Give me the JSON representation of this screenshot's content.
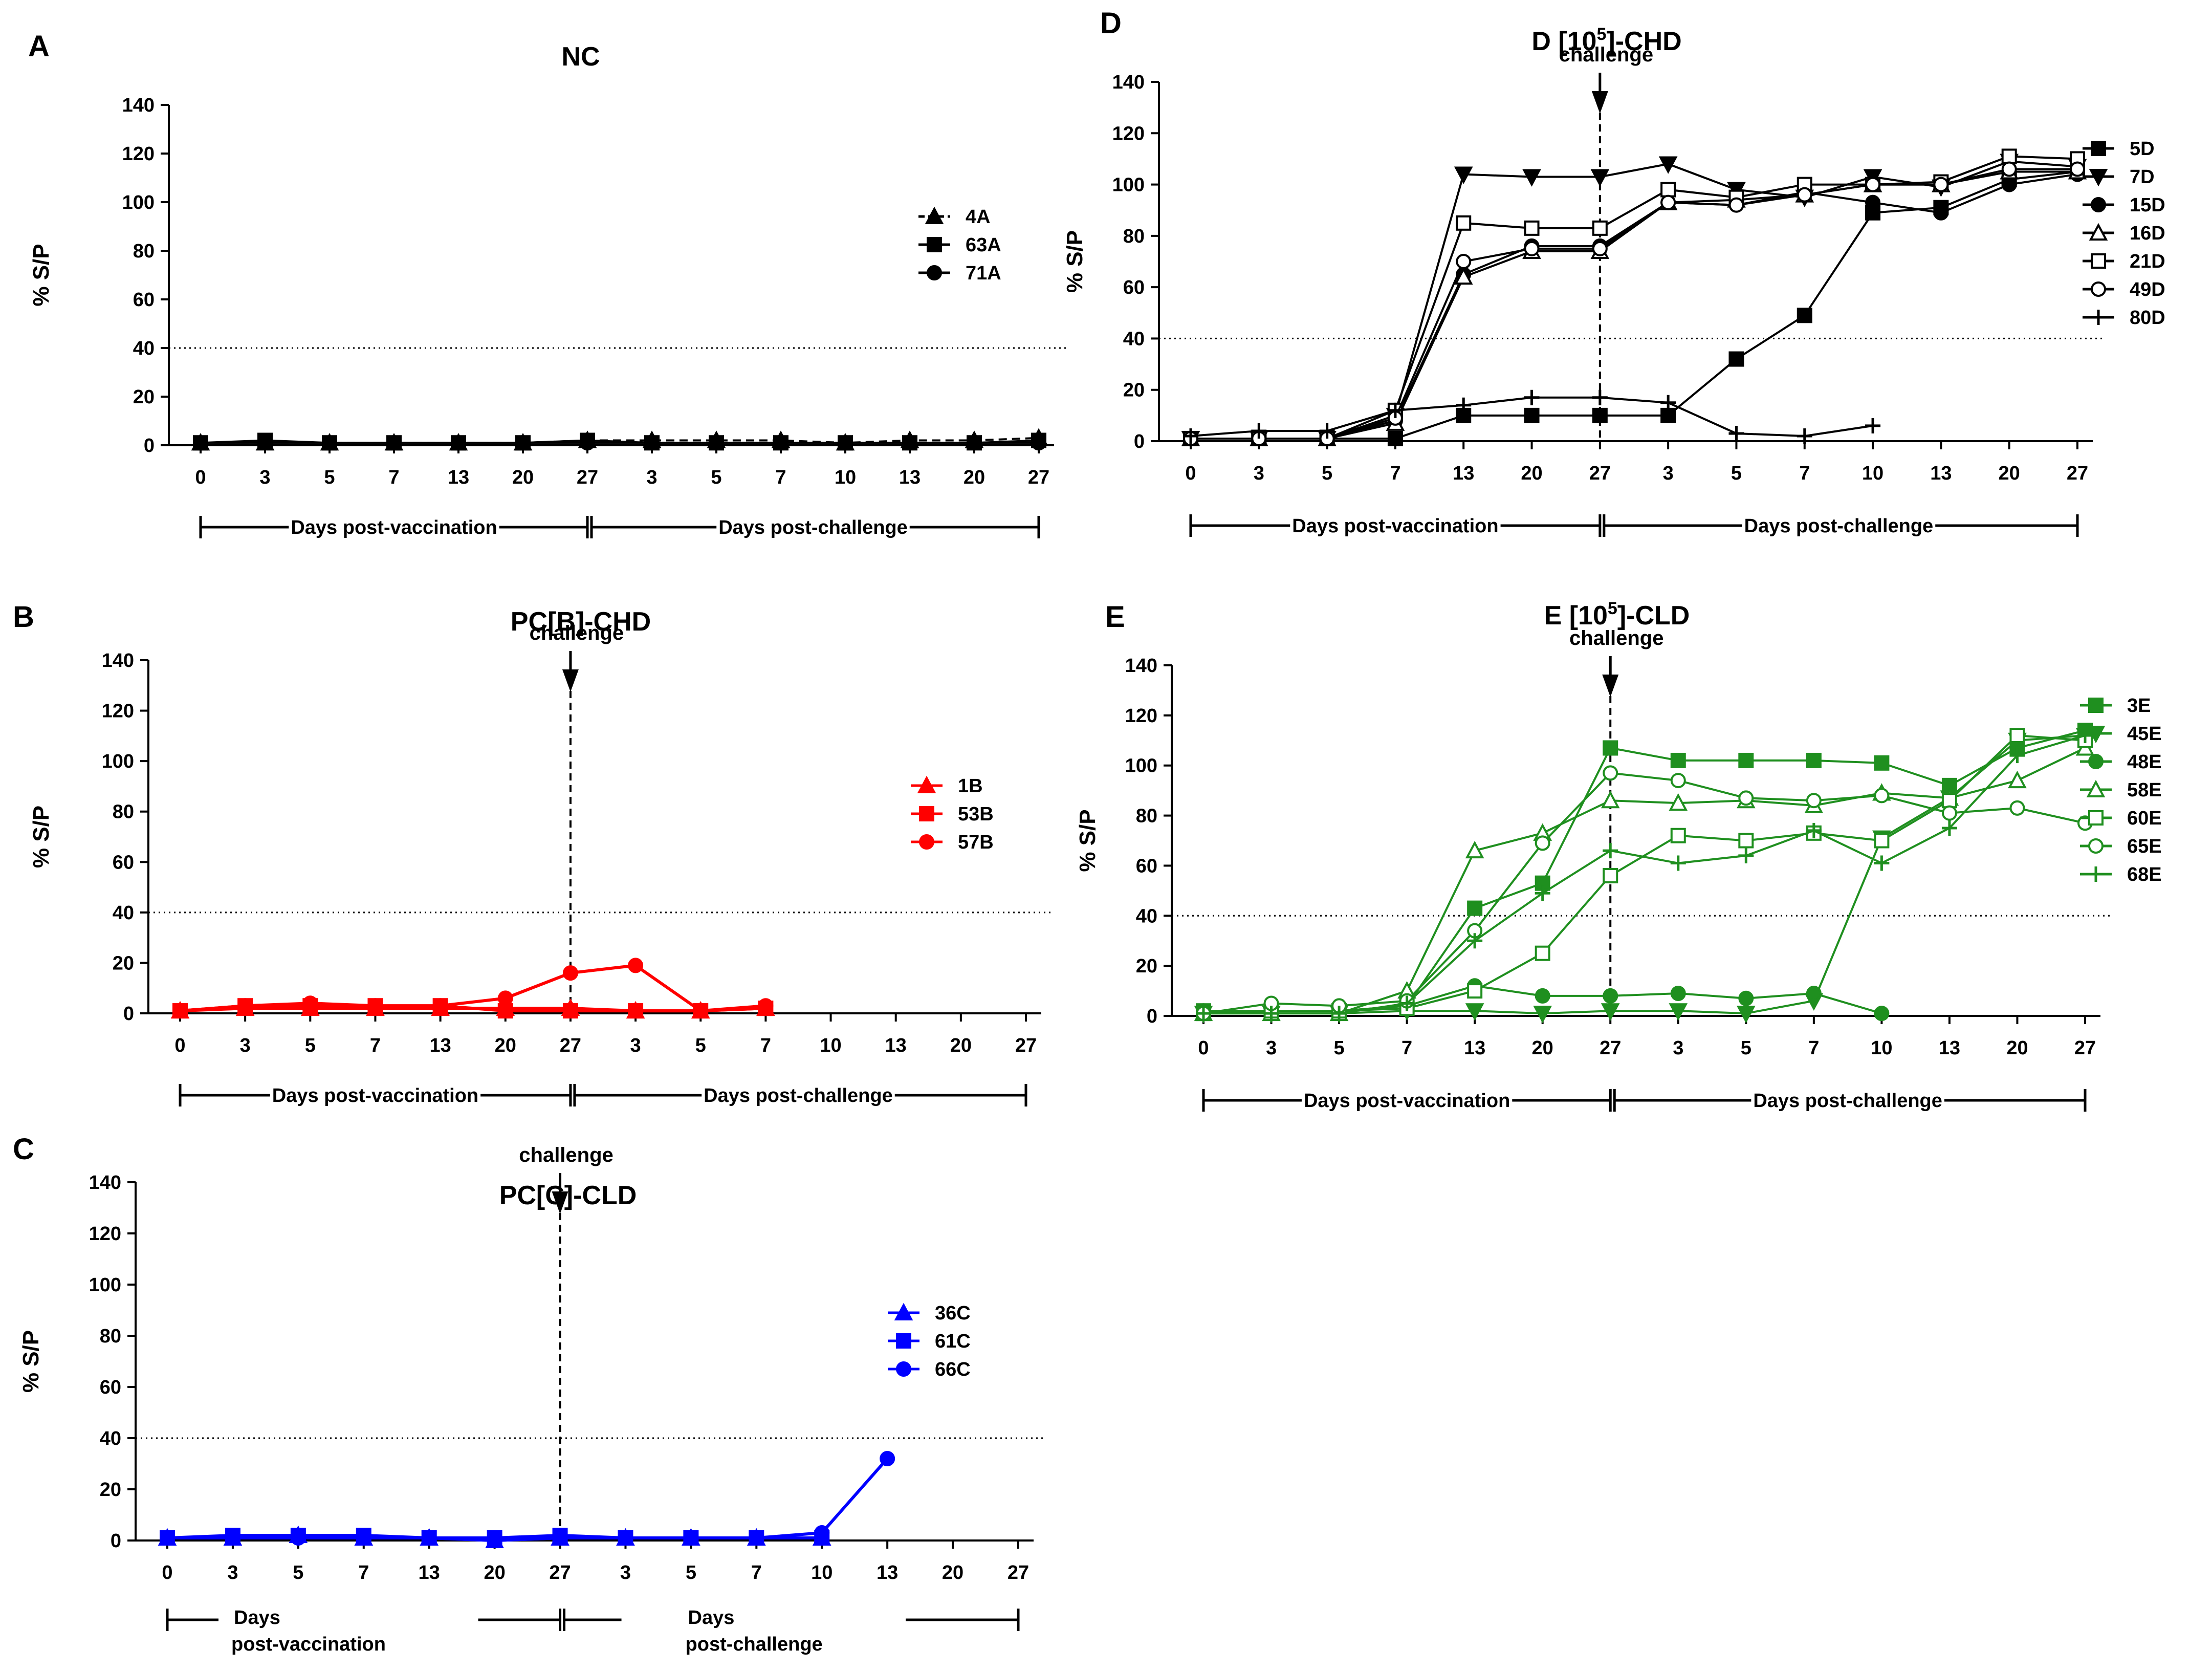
{
  "chart_data": [
    {
      "type": "line",
      "panel": "A",
      "title": "NC",
      "title_sup": "",
      "title_after": "",
      "ylabel": "% S/P",
      "ylim": [
        0,
        140
      ],
      "yticks": [
        0,
        20,
        40,
        60,
        80,
        100,
        120,
        140
      ],
      "cutoff": 40,
      "color": "#000000",
      "categories": [
        "0",
        "3",
        "5",
        "7",
        "13",
        "20",
        "27",
        "3",
        "5",
        "7",
        "10",
        "13",
        "20",
        "27"
      ],
      "challenge": null,
      "phases": [
        "Days post-vaccination",
        "Days post-challenge"
      ],
      "series": [
        {
          "name": "4A",
          "marker": "triangle",
          "dashed": true,
          "values": [
            1,
            1,
            1,
            1,
            1,
            1,
            2,
            2,
            2,
            2,
            1,
            2,
            2,
            3
          ]
        },
        {
          "name": "63A",
          "marker": "square",
          "dashed": false,
          "values": [
            1,
            2,
            1,
            1,
            1,
            1,
            2,
            1,
            1,
            1,
            1,
            1,
            1,
            2
          ]
        },
        {
          "name": "71A",
          "marker": "circle",
          "dashed": false,
          "values": [
            1,
            1,
            1,
            1,
            1,
            1,
            1,
            1,
            1,
            1,
            1,
            1,
            1,
            1
          ]
        }
      ]
    },
    {
      "type": "line",
      "panel": "B",
      "title": "PC[B]-CHD",
      "title_sup": "",
      "title_after": "",
      "ylabel": "% S/P",
      "ylim": [
        0,
        140
      ],
      "yticks": [
        0,
        20,
        40,
        60,
        80,
        100,
        120,
        140
      ],
      "cutoff": 40,
      "color": "#ff0000",
      "categories": [
        "0",
        "3",
        "5",
        "7",
        "13",
        "20",
        "27",
        "3",
        "5",
        "7",
        "10",
        "13",
        "20",
        "27"
      ],
      "challenge": {
        "index": 6,
        "label": "challenge"
      },
      "phases": [
        "Days post-vaccination",
        "Days post-challenge"
      ],
      "series": [
        {
          "name": "1B",
          "marker": "triangle",
          "dashed": false,
          "values": [
            1,
            2,
            2,
            2,
            2,
            2,
            2,
            1,
            1,
            2,
            null,
            null,
            null,
            null
          ]
        },
        {
          "name": "53B",
          "marker": "square",
          "dashed": false,
          "values": [
            1,
            3,
            3,
            3,
            3,
            1,
            1,
            1,
            1,
            2,
            null,
            null,
            null,
            null
          ]
        },
        {
          "name": "57B",
          "marker": "circle",
          "dashed": false,
          "values": [
            1,
            3,
            4,
            3,
            3,
            6,
            16,
            19,
            1,
            3,
            null,
            null,
            null,
            null
          ]
        }
      ]
    },
    {
      "type": "line",
      "panel": "C",
      "title": "PC[C]-CLD",
      "title_sup": "",
      "title_after": "",
      "ylabel": "% S/P",
      "ylim": [
        0,
        140
      ],
      "yticks": [
        0,
        20,
        40,
        60,
        80,
        100,
        120,
        140
      ],
      "cutoff": 40,
      "color": "#0000ff",
      "categories": [
        "0",
        "3",
        "5",
        "7",
        "13",
        "20",
        "27",
        "3",
        "5",
        "7",
        "10",
        "13",
        "20",
        "27"
      ],
      "challenge": {
        "index": 6,
        "label": "challenge"
      },
      "phases": [
        "Days post-vaccination",
        "Days post-challenge"
      ],
      "series": [
        {
          "name": "36C",
          "marker": "triangle",
          "dashed": false,
          "values": [
            1,
            1,
            2,
            1,
            1,
            0,
            1,
            1,
            1,
            1,
            1,
            null,
            null,
            null
          ]
        },
        {
          "name": "61C",
          "marker": "square",
          "dashed": false,
          "values": [
            1,
            2,
            2,
            2,
            1,
            1,
            2,
            1,
            1,
            1,
            1,
            null,
            null,
            null
          ]
        },
        {
          "name": "66C",
          "marker": "circle",
          "dashed": false,
          "values": [
            1,
            1,
            1,
            1,
            1,
            0,
            1,
            1,
            1,
            1,
            3,
            32,
            null,
            null
          ]
        }
      ]
    },
    {
      "type": "line",
      "panel": "D",
      "title": "D [10",
      "title_sup": "5",
      "title_after": "]-CHD",
      "ylabel": "% S/P",
      "ylim": [
        0,
        140
      ],
      "yticks": [
        0,
        20,
        40,
        60,
        80,
        100,
        120,
        140
      ],
      "cutoff": 40,
      "color": "#000000",
      "categories": [
        "0",
        "3",
        "5",
        "7",
        "13",
        "20",
        "27",
        "3",
        "5",
        "7",
        "10",
        "13",
        "20",
        "27"
      ],
      "challenge": {
        "index": 6,
        "label": "challenge"
      },
      "phases": [
        "Days post-vaccination",
        "Days post-challenge"
      ],
      "series": [
        {
          "name": "5D",
          "marker": "square",
          "dashed": false,
          "values": [
            1,
            1,
            1,
            1,
            10,
            10,
            10,
            10,
            32,
            49,
            89,
            91,
            102,
            105
          ]
        },
        {
          "name": "7D",
          "marker": "triangle-down",
          "dashed": false,
          "values": [
            1,
            1,
            1,
            10,
            104,
            103,
            103,
            108,
            98,
            95,
            103,
            99,
            109,
            107
          ]
        },
        {
          "name": "15D",
          "marker": "circle",
          "dashed": false,
          "values": [
            1,
            1,
            1,
            8,
            65,
            76,
            76,
            93,
            92,
            97,
            93,
            89,
            100,
            104
          ]
        },
        {
          "name": "16D",
          "marker": "triangle-open",
          "dashed": false,
          "values": [
            1,
            1,
            1,
            7,
            64,
            74,
            74,
            93,
            94,
            96,
            100,
            100,
            105,
            105
          ]
        },
        {
          "name": "21D",
          "marker": "square-open",
          "dashed": false,
          "values": [
            1,
            1,
            1,
            12,
            85,
            83,
            83,
            98,
            95,
            100,
            100,
            101,
            111,
            110
          ]
        },
        {
          "name": "49D",
          "marker": "circle-open",
          "dashed": false,
          "values": [
            1,
            1,
            1,
            9,
            70,
            75,
            75,
            93,
            92,
            96,
            100,
            100,
            106,
            106
          ]
        },
        {
          "name": "80D",
          "marker": "plus",
          "dashed": false,
          "values": [
            2,
            4,
            4,
            12,
            14,
            17,
            17,
            15,
            3,
            2,
            6,
            null,
            null,
            null
          ]
        }
      ]
    },
    {
      "type": "line",
      "panel": "E",
      "title": "E [10",
      "title_sup": "5",
      "title_after": "]-CLD",
      "ylabel": "% S/P",
      "ylim": [
        0,
        140
      ],
      "yticks": [
        0,
        20,
        40,
        60,
        80,
        100,
        120,
        140
      ],
      "cutoff": 40,
      "color": "#1f8f1f",
      "categories": [
        "0",
        "3",
        "5",
        "7",
        "13",
        "20",
        "27",
        "3",
        "5",
        "7",
        "10",
        "13",
        "20",
        "27"
      ],
      "challenge": {
        "index": 6,
        "label": "challenge"
      },
      "phases": [
        "Days post-vaccination",
        "Days post-challenge"
      ],
      "series": [
        {
          "name": "3E",
          "marker": "square",
          "dashed": false,
          "values": [
            2,
            2,
            2,
            4,
            43,
            53,
            107,
            102,
            102,
            102,
            101,
            92,
            107,
            114
          ]
        },
        {
          "name": "45E",
          "marker": "triangle-down",
          "dashed": false,
          "values": [
            1,
            1,
            1,
            2,
            2,
            1,
            2,
            2,
            1,
            6,
            71,
            87,
            110,
            112
          ]
        },
        {
          "name": "48E",
          "marker": "circle",
          "dashed": false,
          "values": [
            2,
            2,
            2,
            4,
            12,
            8,
            8,
            9,
            7,
            9,
            1,
            null,
            null,
            null
          ]
        },
        {
          "name": "58E",
          "marker": "triangle-open",
          "dashed": false,
          "values": [
            1,
            1,
            1,
            10,
            66,
            73,
            86,
            85,
            86,
            84,
            89,
            87,
            94,
            107
          ]
        },
        {
          "name": "60E",
          "marker": "square-open",
          "dashed": false,
          "values": [
            1,
            2,
            2,
            3,
            10,
            25,
            56,
            72,
            70,
            73,
            70,
            86,
            112,
            110
          ]
        },
        {
          "name": "65E",
          "marker": "circle-open",
          "dashed": false,
          "values": [
            1,
            5,
            4,
            6,
            34,
            69,
            97,
            94,
            87,
            86,
            88,
            81,
            83,
            77
          ]
        },
        {
          "name": "68E",
          "marker": "plus",
          "dashed": false,
          "values": [
            1,
            1,
            1,
            5,
            30,
            49,
            66,
            61,
            64,
            74,
            61,
            75,
            104,
            112
          ]
        }
      ]
    }
  ]
}
